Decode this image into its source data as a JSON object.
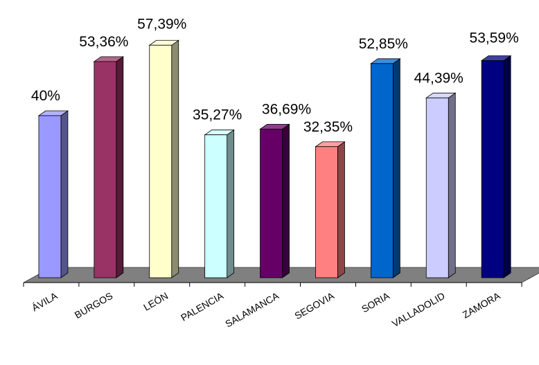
{
  "chart_data": {
    "type": "bar",
    "style": "3d",
    "categories": [
      "ÁVILA",
      "BURGOS",
      "LEÓN",
      "PALENCIA",
      "SALAMANCA",
      "SEGOVIA",
      "SORIA",
      "VALLADOLID",
      "ZAMORA"
    ],
    "values": [
      40,
      53.36,
      57.39,
      35.27,
      36.69,
      32.35,
      52.85,
      44.39,
      53.59
    ],
    "data_labels": [
      "40%",
      "53,36%",
      "57,39%",
      "35,27%",
      "36,69%",
      "32,35%",
      "52,85%",
      "44,39%",
      "53,59%"
    ],
    "colors": [
      "#9999ff",
      "#993366",
      "#ffffcc",
      "#ccffff",
      "#660066",
      "#ff8080",
      "#0066cc",
      "#ccccff",
      "#000080"
    ],
    "floor_color": "#808080",
    "title": "",
    "xlabel": "",
    "ylabel": "",
    "ylim": [
      0,
      60
    ],
    "grid": false,
    "legend": "none"
  }
}
